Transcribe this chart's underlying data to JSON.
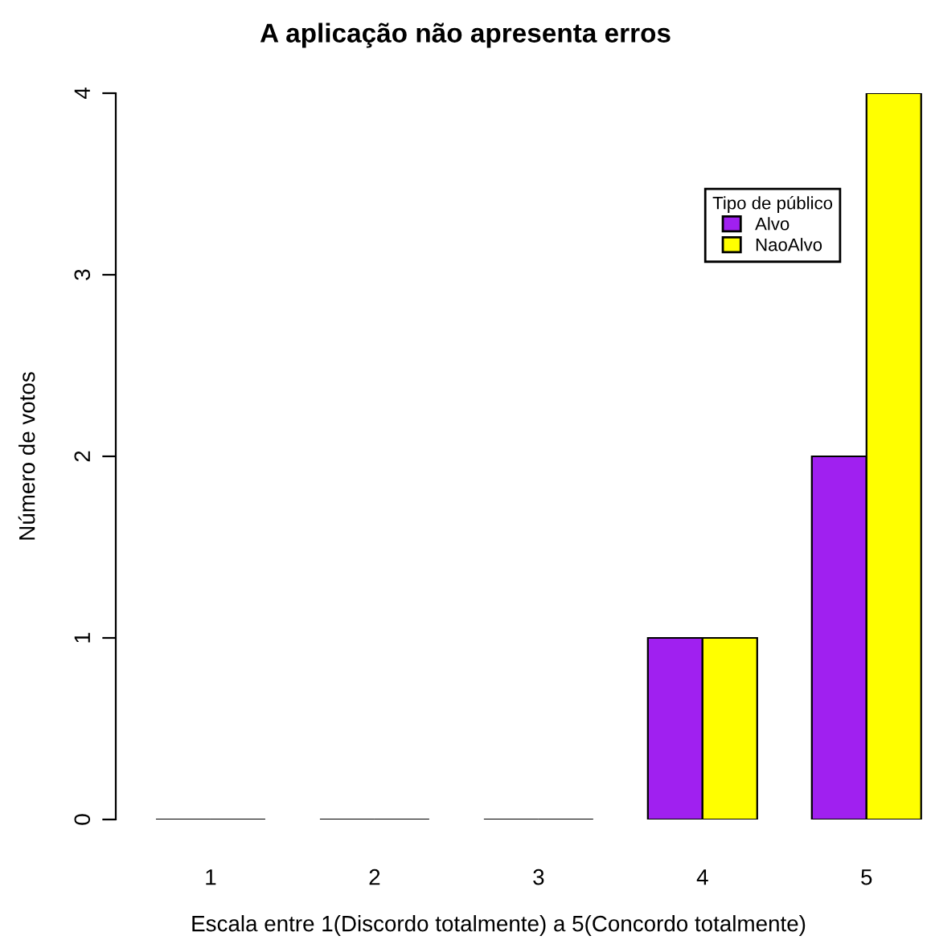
{
  "chart_data": {
    "type": "bar",
    "title": "A aplicação não apresenta erros",
    "xlabel": "Escala entre 1(Discordo totalmente) a 5(Concordo totalmente)",
    "ylabel": "Número de votos",
    "legend_title": "Tipo de público",
    "categories": [
      "1",
      "2",
      "3",
      "4",
      "5"
    ],
    "series": [
      {
        "name": "Alvo",
        "color": "#a020f0",
        "values": [
          0,
          0,
          0,
          1,
          2
        ]
      },
      {
        "name": "NaoAlvo",
        "color": "#ffff00",
        "values": [
          0,
          0,
          0,
          1,
          4
        ]
      }
    ],
    "ylim": [
      0,
      4
    ],
    "yticks": [
      0,
      1,
      2,
      3,
      4
    ],
    "grid": false,
    "legend": "top right"
  }
}
